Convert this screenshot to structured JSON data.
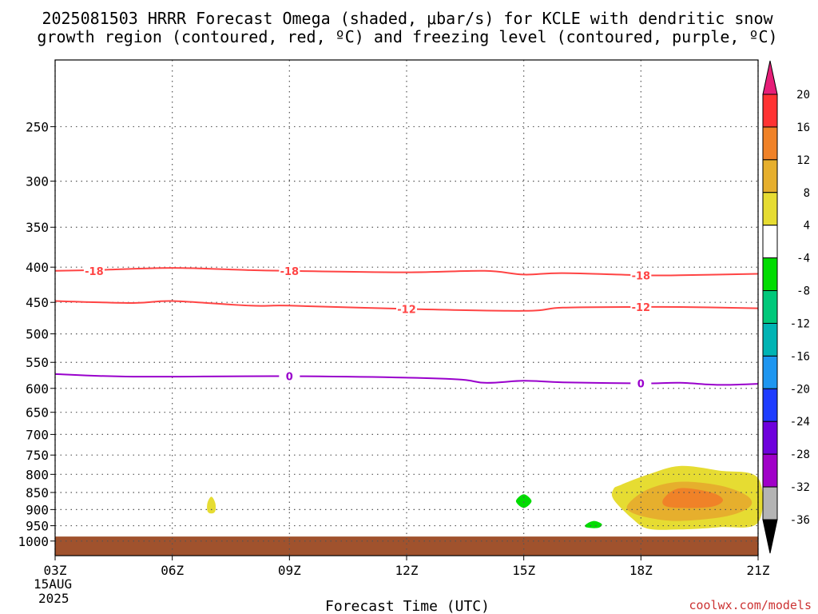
{
  "chart_data": {
    "type": "time-height cross section",
    "title_line1": "2025081503 HRRR Forecast Omega (shaded, μbar/s) for KCLE with dendritic snow",
    "title_line2": "growth region (contoured, red, ºC) and freezing level (contoured, purple, ºC)",
    "xlabel": "Forecast Time (UTC)",
    "x_ticks": [
      "03Z",
      "06Z",
      "09Z",
      "12Z",
      "15Z",
      "18Z",
      "21Z"
    ],
    "x_hours": [
      3,
      6,
      9,
      12,
      15,
      18,
      21
    ],
    "x_start_date": [
      "15AUG",
      "2025"
    ],
    "xlim_hours": [
      3,
      21
    ],
    "y_ticks": [
      250,
      300,
      350,
      400,
      450,
      500,
      550,
      600,
      650,
      700,
      750,
      800,
      850,
      900,
      950,
      1000
    ],
    "ylim_hpa": [
      1050,
      200
    ],
    "y_scale": "log-pressure",
    "grid": true,
    "contours": [
      {
        "name": "-18",
        "color": "#ff4444",
        "points": [
          [
            3,
            405
          ],
          [
            4,
            404
          ],
          [
            6,
            401
          ],
          [
            8,
            404
          ],
          [
            9,
            405
          ],
          [
            12,
            407
          ],
          [
            14,
            405
          ],
          [
            15,
            410
          ],
          [
            16,
            408
          ],
          [
            18,
            411
          ],
          [
            19,
            411
          ],
          [
            21,
            409
          ]
        ],
        "labels": [
          [
            4,
            405
          ],
          [
            9,
            405
          ],
          [
            18,
            411
          ]
        ]
      },
      {
        "name": "-12",
        "color": "#ff4444",
        "points": [
          [
            3,
            448
          ],
          [
            5,
            451
          ],
          [
            6,
            448
          ],
          [
            8,
            455
          ],
          [
            9,
            455
          ],
          [
            12,
            460
          ],
          [
            15,
            463
          ],
          [
            16,
            458
          ],
          [
            18,
            457
          ],
          [
            19,
            457
          ],
          [
            21,
            459
          ]
        ],
        "labels": [
          [
            12,
            460
          ],
          [
            18,
            457
          ]
        ]
      },
      {
        "name": "0",
        "color": "#9900cc",
        "points": [
          [
            3,
            572
          ],
          [
            5,
            577
          ],
          [
            9,
            576
          ],
          [
            13,
            581
          ],
          [
            14,
            589
          ],
          [
            15,
            585
          ],
          [
            16,
            588
          ],
          [
            18,
            590
          ],
          [
            19,
            589
          ],
          [
            20,
            593
          ],
          [
            21,
            591
          ]
        ],
        "labels": [
          [
            9,
            576
          ],
          [
            18,
            590
          ]
        ]
      }
    ],
    "shaded_areas": [
      {
        "value_range": [
          4,
          8
        ],
        "color": "#e6dc32",
        "points": [
          [
            17.5,
            828
          ],
          [
            18.2,
            800
          ],
          [
            19,
            778
          ],
          [
            20,
            790
          ],
          [
            21,
            810
          ],
          [
            21,
            940
          ],
          [
            20,
            955
          ],
          [
            19,
            962
          ],
          [
            18.2,
            960
          ],
          [
            17.8,
            930
          ],
          [
            17.3,
            870
          ],
          [
            17.3,
            840
          ]
        ]
      },
      {
        "value_range": [
          8,
          12
        ],
        "color": "#e6af2d",
        "points": [
          [
            17.7,
            880
          ],
          [
            18.2,
            840
          ],
          [
            19,
            820
          ],
          [
            20,
            830
          ],
          [
            20.7,
            858
          ],
          [
            20.8,
            890
          ],
          [
            20.2,
            920
          ],
          [
            19,
            935
          ],
          [
            18.2,
            925
          ],
          [
            17.7,
            905
          ]
        ]
      },
      {
        "value_range": [
          12,
          16
        ],
        "color": "#f08228",
        "points": [
          [
            18.6,
            865
          ],
          [
            19,
            838
          ],
          [
            19.8,
            850
          ],
          [
            20.1,
            872
          ],
          [
            19.8,
            892
          ],
          [
            19,
            895
          ],
          [
            18.6,
            888
          ]
        ]
      },
      {
        "value_range": [
          4,
          8
        ],
        "color": "#e6dc32",
        "points": [
          [
            6.9,
            880
          ],
          [
            7.0,
            862
          ],
          [
            7.1,
            880
          ],
          [
            7.1,
            905
          ],
          [
            7.0,
            912
          ],
          [
            6.9,
            905
          ]
        ]
      },
      {
        "value_range": [
          -8,
          -4
        ],
        "color": "#00dc00",
        "points": [
          [
            15,
            855
          ],
          [
            15.2,
            875
          ],
          [
            15,
            895
          ],
          [
            14.8,
            875
          ]
        ]
      },
      {
        "value_range": [
          -8,
          -4
        ],
        "color": "#00dc00",
        "points": [
          [
            16.6,
            945
          ],
          [
            16.8,
            935
          ],
          [
            17.0,
            945
          ],
          [
            16.9,
            957
          ],
          [
            16.6,
            955
          ]
        ]
      }
    ],
    "ground_below_hpa": 985,
    "ground_color": "#a0522d",
    "colorbar": {
      "labels": [
        "20",
        "16",
        "12",
        "8",
        "4",
        "-4",
        "-8",
        "-12",
        "-16",
        "-20",
        "-24",
        "-28",
        "-32",
        "-36"
      ],
      "colors": [
        "#e61e78",
        "#ff3232",
        "#f08228",
        "#e6af2d",
        "#e6dc32",
        "#ffffff",
        "#00dc00",
        "#00c87a",
        "#00b4b4",
        "#1e96f0",
        "#1e3cff",
        "#6e00dc",
        "#a000c8",
        "#b4b4b4",
        "#000000"
      ]
    }
  },
  "credit": "coolwx.com/models"
}
